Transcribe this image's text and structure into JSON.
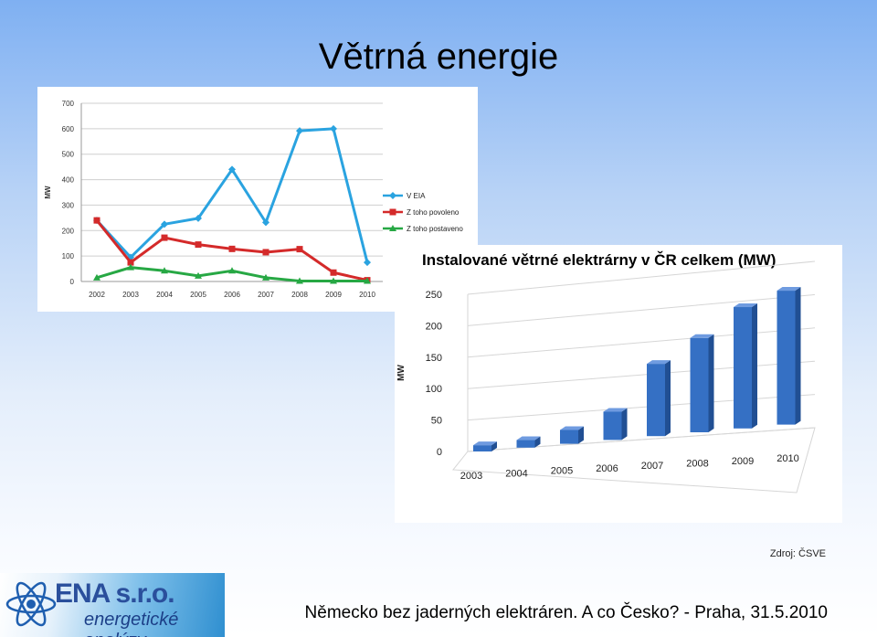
{
  "slide": {
    "title": "Větrná energie",
    "source": "Zdroj: ČSVE",
    "footer": "Německo bez jaderných elektráren. A co Česko? - Praha, 31.5.2010",
    "logo_line1": "ENA s.r.o.",
    "logo_line2": "energetické analýzy"
  },
  "chart_data": [
    {
      "type": "line",
      "title": "",
      "ylabel": "MW",
      "categories": [
        "2002",
        "2003",
        "2004",
        "2005",
        "2006",
        "2007",
        "2008",
        "2009",
        "2010"
      ],
      "ylim": [
        0,
        700
      ],
      "yticks": [
        "0",
        "100",
        "200",
        "300",
        "400",
        "500",
        "600",
        "700"
      ],
      "grid": true,
      "legend": "right",
      "series": [
        {
          "name": "V EIA",
          "color": "#2aa3e0",
          "marker": "diamond",
          "values": [
            240,
            95,
            225,
            248,
            440,
            232,
            592,
            600,
            75
          ]
        },
        {
          "name": "Z toho povoleno",
          "color": "#d42a2a",
          "marker": "square",
          "values": [
            240,
            75,
            172,
            145,
            128,
            115,
            127,
            35,
            5
          ]
        },
        {
          "name": "Z toho postaveno",
          "color": "#27a844",
          "marker": "triangle",
          "values": [
            15,
            55,
            42,
            22,
            42,
            15,
            2,
            2,
            2
          ]
        }
      ]
    },
    {
      "type": "bar",
      "title": "Instalované větrné elektrárny v ČR  celkem (MW)",
      "ylabel": "MW",
      "categories": [
        "2003",
        "2004",
        "2005",
        "2006",
        "2007",
        "2008",
        "2009",
        "2010"
      ],
      "values": [
        10,
        12,
        22,
        45,
        115,
        150,
        193,
        213
      ],
      "ylim": [
        0,
        250
      ],
      "yticks": [
        "0",
        "50",
        "100",
        "150",
        "200",
        "250"
      ],
      "grid": true,
      "color": "#3570c4"
    }
  ]
}
